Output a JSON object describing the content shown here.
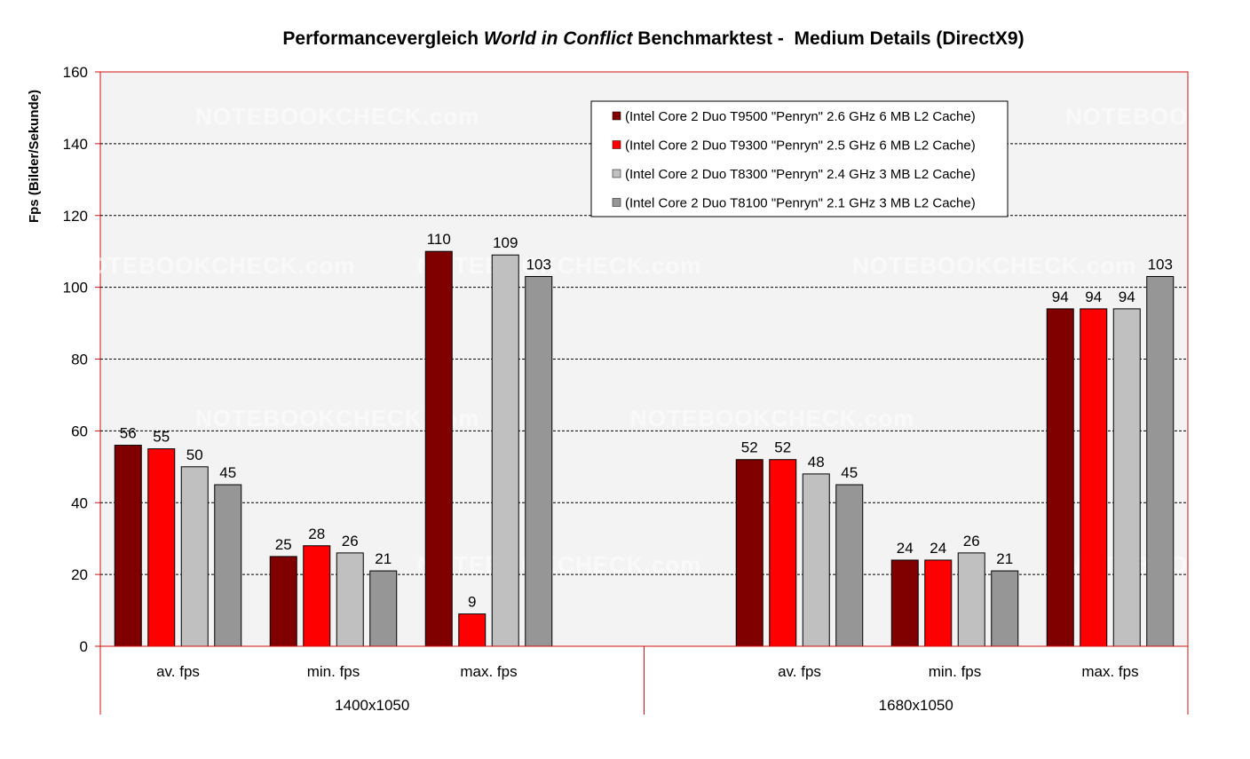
{
  "chart_data": {
    "type": "bar",
    "title_parts": [
      "Performancevergleich ",
      "World in Conflict",
      " Benchmarktest -  Medium Details (DirectX9)"
    ],
    "ylabel": "Fps (Bilder/Sekunde)",
    "xlabel": "",
    "ylim": [
      0,
      160
    ],
    "yticks": [
      0,
      20,
      40,
      60,
      80,
      100,
      120,
      140,
      160
    ],
    "grid": true,
    "legend_position": "top-right",
    "groups": [
      {
        "label": "1400x1050",
        "categories": [
          "av. fps",
          "min. fps",
          "max. fps"
        ]
      },
      {
        "label": "1680x1050",
        "categories": [
          "av. fps",
          "min. fps",
          "max. fps"
        ]
      }
    ],
    "series": [
      {
        "name": "(Intel Core 2 Duo T9500 \"Penryn\" 2.6 GHz 6 MB L2 Cache)",
        "color": "#800000",
        "values": [
          56,
          25,
          110,
          52,
          24,
          94
        ]
      },
      {
        "name": "(Intel Core 2 Duo T9300 \"Penryn\" 2.5 GHz 6 MB L2 Cache)",
        "color": "#ff0000",
        "values": [
          55,
          28,
          9,
          52,
          24,
          94
        ]
      },
      {
        "name": "(Intel Core 2 Duo T8300 \"Penryn\" 2.4 GHz 3 MB L2 Cache)",
        "color": "#c0c0c0",
        "values": [
          50,
          26,
          109,
          48,
          26,
          94
        ]
      },
      {
        "name": "(Intel Core 2 Duo T8100 \"Penryn\" 2.1 GHz 3 MB L2 Cache)",
        "color": "#969696",
        "values": [
          45,
          21,
          103,
          45,
          21,
          103
        ]
      }
    ],
    "watermark": "NOTEBOOKCHECK.com"
  }
}
